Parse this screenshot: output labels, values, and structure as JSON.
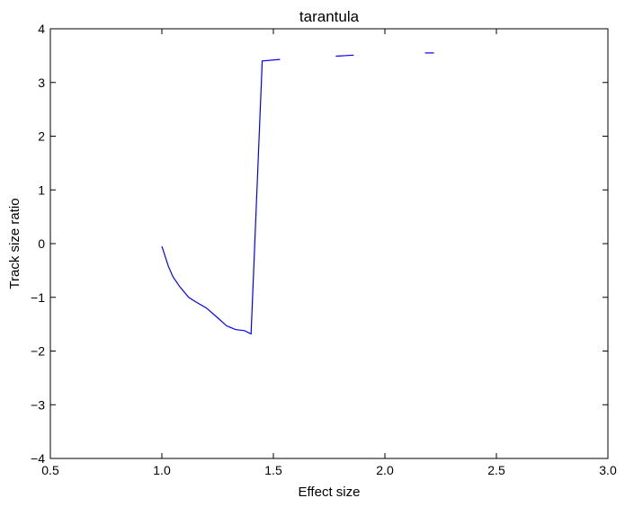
{
  "chart_data": {
    "type": "line",
    "title": "tarantula",
    "xlabel": "Effect size",
    "ylabel": "Track size ratio",
    "xlim": [
      0.5,
      3.0
    ],
    "ylim": [
      -4,
      4
    ],
    "xticks": [
      "0.5",
      "1.0",
      "1.5",
      "2.0",
      "2.5",
      "3.0"
    ],
    "yticks": [
      "4",
      "3",
      "2",
      "1",
      "0",
      "−1",
      "−2",
      "−3",
      "−4"
    ],
    "grid": false,
    "series": [
      {
        "color": "#0000ff",
        "segments": [
          [
            [
              1.0,
              -0.05
            ],
            [
              1.03,
              -0.43
            ],
            [
              1.05,
              -0.62
            ],
            [
              1.08,
              -0.8
            ],
            [
              1.12,
              -1.0
            ],
            [
              1.15,
              -1.08
            ],
            [
              1.2,
              -1.2
            ],
            [
              1.25,
              -1.38
            ],
            [
              1.29,
              -1.53
            ],
            [
              1.33,
              -1.6
            ],
            [
              1.37,
              -1.62
            ],
            [
              1.4,
              -1.68
            ],
            [
              1.45,
              3.4
            ],
            [
              1.53,
              3.43
            ]
          ],
          [
            [
              1.78,
              3.49
            ],
            [
              1.86,
              3.51
            ]
          ],
          [
            [
              2.18,
              3.55
            ],
            [
              2.22,
              3.55
            ]
          ]
        ]
      }
    ]
  }
}
